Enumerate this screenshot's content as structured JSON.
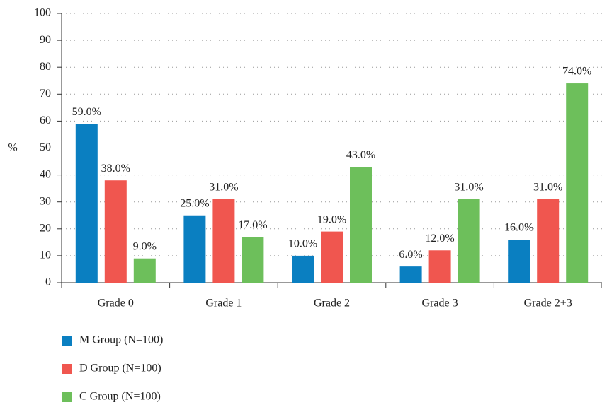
{
  "chart_data": {
    "type": "bar",
    "y_label": "%",
    "categories": [
      "Grade 0",
      "Grade 1",
      "Grade 2",
      "Grade 3",
      "Grade 2+3"
    ],
    "series": [
      {
        "name": "M Group (N=100)",
        "color": "#0a7fc1",
        "values": [
          59,
          25,
          10,
          6,
          16
        ],
        "value_labels": [
          "59.0%",
          "25.0%",
          "10.0%",
          "6.0%",
          "16.0%"
        ]
      },
      {
        "name": "D Group (N=100)",
        "color": "#f0564f",
        "values": [
          38,
          31,
          19,
          12,
          31
        ],
        "value_labels": [
          "38.0%",
          "31.0%",
          "19.0%",
          "12.0%",
          "31.0%"
        ]
      },
      {
        "name": "C Group (N=100)",
        "color": "#6dbf5b",
        "values": [
          9,
          17,
          43,
          31,
          74
        ],
        "value_labels": [
          "9.0%",
          "17.0%",
          "43.0%",
          "31.0%",
          "74.0%"
        ]
      }
    ],
    "ylim": [
      0,
      100
    ],
    "yticks": [
      0,
      10,
      20,
      30,
      40,
      50,
      60,
      70,
      80,
      90,
      100
    ],
    "grid": true
  }
}
